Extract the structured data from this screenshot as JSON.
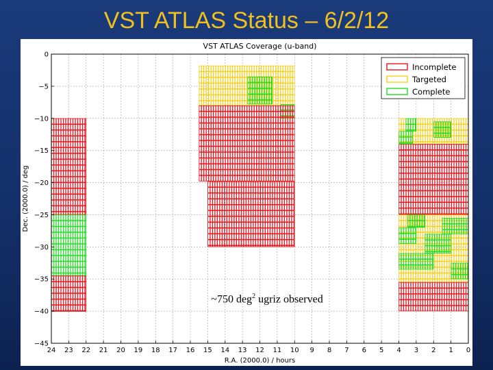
{
  "slide": {
    "title": "VST ATLAS Status – 6/2/12"
  },
  "chart_data": {
    "type": "heatmap",
    "title": "VST ATLAS Coverage (u-band)",
    "xlabel": "R.A. (2000.0) / hours",
    "ylabel": "Dec. (2000.0) / deg",
    "xlim": [
      24,
      0
    ],
    "ylim": [
      -45,
      0
    ],
    "x_ticks": [
      24,
      23,
      22,
      21,
      20,
      19,
      18,
      17,
      16,
      15,
      14,
      13,
      12,
      11,
      10,
      9,
      8,
      7,
      6,
      5,
      4,
      3,
      2,
      1,
      0
    ],
    "y_ticks": [
      0,
      -5,
      -10,
      -15,
      -20,
      -25,
      -30,
      -35,
      -40,
      -45
    ],
    "grid": true,
    "legend_position": "top-right",
    "status_colors": {
      "Incomplete": "#e8141c",
      "Targeted": "#f5d020",
      "Complete": "#22dd22"
    },
    "series": [
      {
        "name": "Incomplete"
      },
      {
        "name": "Targeted"
      },
      {
        "name": "Complete"
      }
    ],
    "regions": [
      {
        "ra": [
          24.0,
          22.0
        ],
        "dec": [
          -10.0,
          -25.0
        ],
        "status": "Incomplete"
      },
      {
        "ra": [
          24.0,
          22.0
        ],
        "dec": [
          -25.0,
          -34.5
        ],
        "status": "Complete"
      },
      {
        "ra": [
          24.0,
          22.0
        ],
        "dec": [
          -34.5,
          -40.0
        ],
        "status": "Incomplete"
      },
      {
        "ra": [
          15.5,
          10.0
        ],
        "dec": [
          -1.8,
          -8.0
        ],
        "status": "Targeted"
      },
      {
        "ra": [
          12.7,
          11.3
        ],
        "dec": [
          -3.5,
          -7.8
        ],
        "status": "Complete"
      },
      {
        "ra": [
          10.8,
          10.0
        ],
        "dec": [
          -7.8,
          -10.0
        ],
        "status": "Complete"
      },
      {
        "ra": [
          15.5,
          10.0
        ],
        "dec": [
          -8.0,
          -19.8
        ],
        "status": "Incomplete"
      },
      {
        "ra": [
          15.0,
          10.0
        ],
        "dec": [
          -19.8,
          -30.0
        ],
        "status": "Incomplete"
      },
      {
        "ra": [
          4.0,
          0.0
        ],
        "dec": [
          -10.0,
          -14.0
        ],
        "status": "Targeted"
      },
      {
        "ra": [
          4.0,
          0.0
        ],
        "dec": [
          -14.0,
          -25.0
        ],
        "status": "Incomplete"
      },
      {
        "ra": [
          4.0,
          0.0
        ],
        "dec": [
          -25.0,
          -35.5
        ],
        "status": "Targeted"
      },
      {
        "ra": [
          4.0,
          0.0
        ],
        "dec": [
          -35.5,
          -40.0
        ],
        "status": "Incomplete"
      }
    ],
    "patches": [
      {
        "ra": [
          3.6,
          3.0
        ],
        "dec": [
          -10.0,
          -12.0
        ],
        "status": "Complete"
      },
      {
        "ra": [
          2.0,
          1.0
        ],
        "dec": [
          -10.5,
          -13.0
        ],
        "status": "Complete"
      },
      {
        "ra": [
          4.0,
          3.2
        ],
        "dec": [
          -12.0,
          -14.0
        ],
        "status": "Complete"
      },
      {
        "ra": [
          3.5,
          2.5
        ],
        "dec": [
          -25.0,
          -27.0
        ],
        "status": "Complete"
      },
      {
        "ra": [
          1.5,
          0.0
        ],
        "dec": [
          -25.5,
          -28.0
        ],
        "status": "Complete"
      },
      {
        "ra": [
          4.0,
          3.0
        ],
        "dec": [
          -27.0,
          -29.5
        ],
        "status": "Complete"
      },
      {
        "ra": [
          2.5,
          1.0
        ],
        "dec": [
          -28.0,
          -31.0
        ],
        "status": "Complete"
      },
      {
        "ra": [
          4.0,
          2.0
        ],
        "dec": [
          -31.0,
          -33.5
        ],
        "status": "Complete"
      },
      {
        "ra": [
          1.0,
          0.0
        ],
        "dec": [
          -32.5,
          -35.0
        ],
        "status": "Complete"
      }
    ],
    "annotation": {
      "text_prefix": "~750 deg",
      "superscript": "2",
      "text_suffix": " ugriz observed",
      "ra": 13.5,
      "dec": -38.5
    }
  }
}
